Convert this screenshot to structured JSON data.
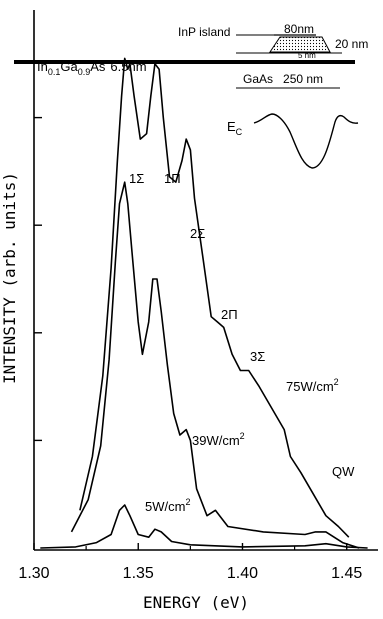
{
  "chart_data": {
    "type": "line",
    "xlabel": "ENERGY (eV)",
    "ylabel": "INTENSITY (arb. units)",
    "xlim": [
      1.3,
      1.465
    ],
    "ylim": [
      0,
      1.0
    ],
    "x_ticks": [
      "1.30",
      "1.35",
      "1.40",
      "1.45"
    ],
    "x_tick_values": [
      1.3,
      1.35,
      1.4,
      1.45
    ],
    "y_tick_values": [
      0.2,
      0.4,
      0.6,
      0.8
    ],
    "grid": false,
    "series": [
      {
        "name": "75W/cm²",
        "points": [
          [
            1.322,
            0.07
          ],
          [
            1.328,
            0.17
          ],
          [
            1.333,
            0.32
          ],
          [
            1.337,
            0.52
          ],
          [
            1.34,
            0.72
          ],
          [
            1.342,
            0.84
          ],
          [
            1.3435,
            0.91
          ],
          [
            1.345,
            0.89
          ],
          [
            1.346,
            0.9
          ],
          [
            1.348,
            0.84
          ],
          [
            1.351,
            0.76
          ],
          [
            1.354,
            0.77
          ],
          [
            1.356,
            0.84
          ],
          [
            1.358,
            0.9
          ],
          [
            1.36,
            0.89
          ],
          [
            1.362,
            0.8
          ],
          [
            1.365,
            0.69
          ],
          [
            1.368,
            0.68
          ],
          [
            1.371,
            0.72
          ],
          [
            1.373,
            0.76
          ],
          [
            1.375,
            0.74
          ],
          [
            1.377,
            0.65
          ],
          [
            1.381,
            0.54
          ],
          [
            1.385,
            0.43
          ],
          [
            1.388,
            0.42
          ],
          [
            1.391,
            0.41
          ],
          [
            1.395,
            0.36
          ],
          [
            1.399,
            0.33
          ],
          [
            1.403,
            0.33
          ],
          [
            1.408,
            0.3
          ],
          [
            1.414,
            0.26
          ],
          [
            1.42,
            0.22
          ],
          [
            1.423,
            0.17
          ],
          [
            1.428,
            0.14
          ],
          [
            1.434,
            0.1
          ],
          [
            1.44,
            0.06
          ],
          [
            1.446,
            0.04
          ],
          [
            1.451,
            0.02
          ]
        ]
      },
      {
        "name": "39W/cm²",
        "points": [
          [
            1.318,
            0.03
          ],
          [
            1.326,
            0.09
          ],
          [
            1.332,
            0.19
          ],
          [
            1.336,
            0.35
          ],
          [
            1.339,
            0.53
          ],
          [
            1.341,
            0.64
          ],
          [
            1.3435,
            0.68
          ],
          [
            1.345,
            0.64
          ],
          [
            1.347,
            0.55
          ],
          [
            1.35,
            0.42
          ],
          [
            1.352,
            0.36
          ],
          [
            1.355,
            0.42
          ],
          [
            1.357,
            0.5
          ],
          [
            1.359,
            0.5
          ],
          [
            1.361,
            0.44
          ],
          [
            1.364,
            0.34
          ],
          [
            1.367,
            0.25
          ],
          [
            1.37,
            0.21
          ],
          [
            1.373,
            0.22
          ],
          [
            1.375,
            0.2
          ],
          [
            1.378,
            0.11
          ],
          [
            1.383,
            0.06
          ],
          [
            1.387,
            0.07
          ],
          [
            1.389,
            0.06
          ],
          [
            1.393,
            0.04
          ],
          [
            1.41,
            0.03
          ],
          [
            1.43,
            0.025
          ],
          [
            1.435,
            0.03
          ],
          [
            1.44,
            0.03
          ],
          [
            1.448,
            0.01
          ],
          [
            1.456,
            0.0
          ]
        ]
      },
      {
        "name": "5W/cm²",
        "points": [
          [
            1.303,
            0.0
          ],
          [
            1.32,
            0.002
          ],
          [
            1.33,
            0.01
          ],
          [
            1.337,
            0.025
          ],
          [
            1.341,
            0.07
          ],
          [
            1.3435,
            0.08
          ],
          [
            1.346,
            0.06
          ],
          [
            1.35,
            0.025
          ],
          [
            1.355,
            0.02
          ],
          [
            1.358,
            0.035
          ],
          [
            1.361,
            0.03
          ],
          [
            1.366,
            0.012
          ],
          [
            1.375,
            0.006
          ],
          [
            1.4,
            0.002
          ],
          [
            1.43,
            0.004
          ],
          [
            1.44,
            0.008
          ],
          [
            1.45,
            0.002
          ],
          [
            1.46,
            0.0
          ]
        ]
      }
    ],
    "peak_labels": [
      "1Σ",
      "1Π",
      "2Σ",
      "2Π",
      "3Σ",
      "QW"
    ],
    "power_labels": [
      {
        "value": "75W/cm",
        "exp": "2"
      },
      {
        "value": "39W/cm",
        "exp": "2"
      },
      {
        "value": "5W/cm",
        "exp": "2"
      }
    ]
  },
  "inset": {
    "island_label": "InP  island",
    "width_label": "80nm",
    "height_label": "20 nm",
    "wetting_label": "5 nm",
    "well_label_elem1": "In",
    "well_label_sub1": "0.1",
    "well_label_elem2": "Ga",
    "well_label_sub2": "0.9",
    "well_label_elem3": "As",
    "well_label_thickness": "6.5nm",
    "barrier_label": "GaAs   250 nm",
    "band_label_main": "E",
    "band_label_sub": "C"
  }
}
